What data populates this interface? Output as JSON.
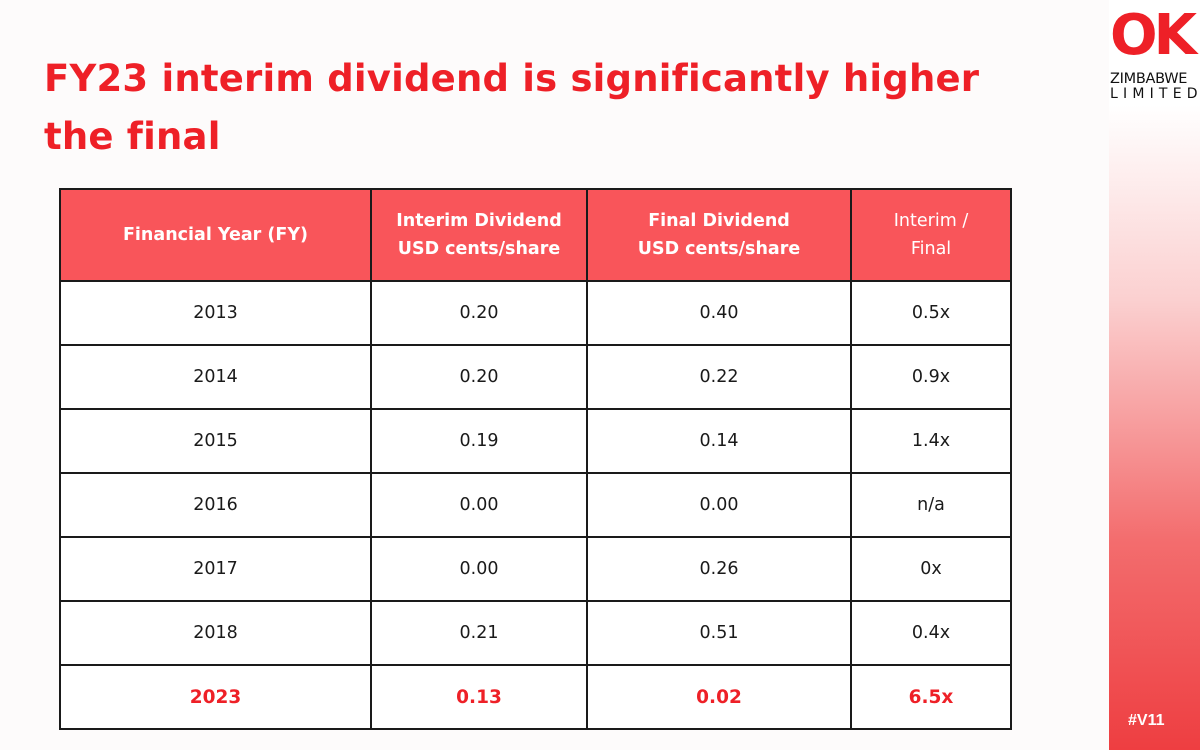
{
  "slide": {
    "title": "FY23 interim dividend is significantly higher the final",
    "tag": "#V11"
  },
  "logo": {
    "mark": "OK",
    "line1": "ZIMBABWE",
    "line2": "LIMITED"
  },
  "table": {
    "headers": [
      {
        "line1": "Financial Year (FY)",
        "line2": ""
      },
      {
        "line1": "Interim Dividend",
        "line2": "USD cents/share"
      },
      {
        "line1": "Final Dividend",
        "line2": "USD cents/share"
      },
      {
        "line1": "Interim /",
        "line2": "Final"
      }
    ],
    "rows": [
      {
        "year": "2013",
        "interim": "0.20",
        "final": "0.40",
        "ratio": "0.5x"
      },
      {
        "year": "2014",
        "interim": "0.20",
        "final": "0.22",
        "ratio": "0.9x"
      },
      {
        "year": "2015",
        "interim": "0.19",
        "final": "0.14",
        "ratio": "1.4x"
      },
      {
        "year": "2016",
        "interim": "0.00",
        "final": "0.00",
        "ratio": "n/a"
      },
      {
        "year": "2017",
        "interim": "0.00",
        "final": "0.26",
        "ratio": "0x"
      },
      {
        "year": "2018",
        "interim": "0.21",
        "final": "0.51",
        "ratio": "0.4x"
      },
      {
        "year": "2023",
        "interim": "0.13",
        "final": "0.02",
        "ratio": "6.5x"
      }
    ]
  },
  "colors": {
    "accent": "#ee2027",
    "header_bg": "#f9555a",
    "border": "#1a1a1a"
  }
}
